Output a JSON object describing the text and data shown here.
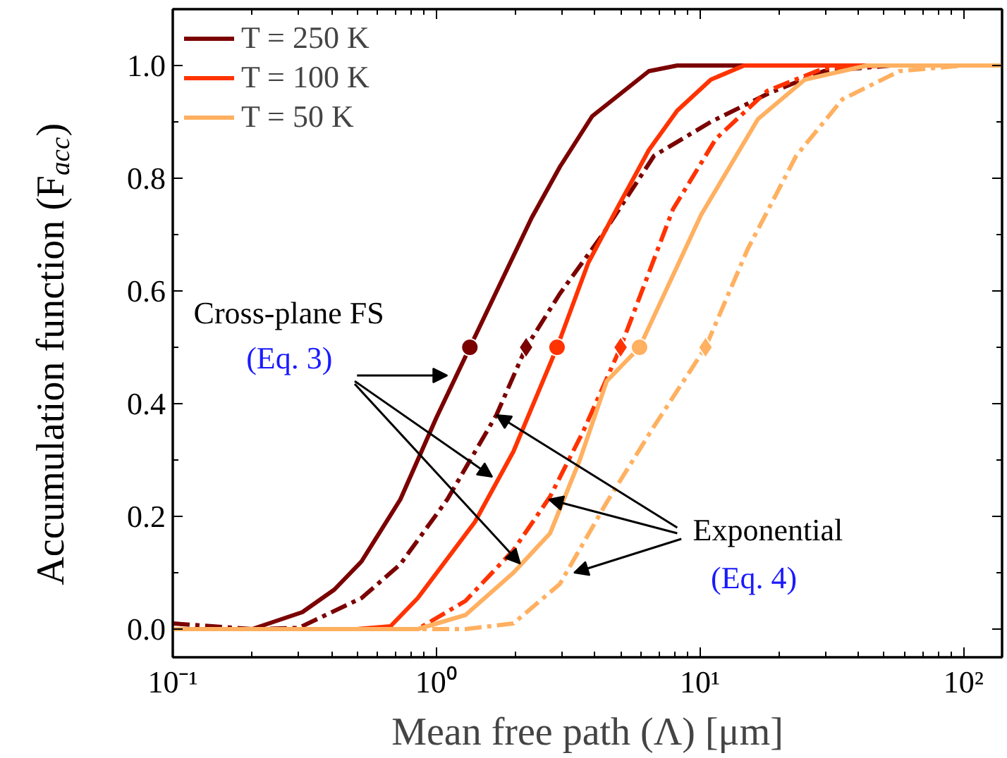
{
  "chart_data": {
    "type": "line",
    "xlabel": "Mean free path (Λ) [μm]",
    "ylabel": "Accumulation function (F$_{acc}$)",
    "log": "x",
    "xlim": [
      0.1,
      140
    ],
    "ylim": [
      -0.05,
      1.1
    ],
    "xticks": [
      {
        "value": 0.1,
        "label": "10⁻¹"
      },
      {
        "value": 1,
        "label": "10⁰"
      },
      {
        "value": 10,
        "label": "10¹"
      },
      {
        "value": 100,
        "label": "10²"
      }
    ],
    "yticks": [
      {
        "value": 0,
        "label": "0.0"
      },
      {
        "value": 0.2,
        "label": "0.2"
      },
      {
        "value": 0.4,
        "label": "0.4"
      },
      {
        "value": 0.6,
        "label": "0.6"
      },
      {
        "value": 0.8,
        "label": "0.8"
      },
      {
        "value": 1,
        "label": "1.0"
      }
    ],
    "grid": false,
    "legend": "top left",
    "marker": "none",
    "annotations": [
      "Cross-plane FS",
      {
        "text": "(Eq. 3)",
        "x": 1.1,
        "y": 0.45
      },
      {
        "text": "Exponential",
        "x": 1.69,
        "y": 0.38
      },
      {
        "text": "(Eq. 4)",
        "x": 3.33,
        "y": 0.1
      }
    ],
    "series": [
      {
        "name": "T = 250 K",
        "color": "#7b0000",
        "line_style": "solid",
        "x": [
          0.1,
          0.2,
          0.31,
          0.41,
          0.52,
          0.73,
          1.0,
          1.34,
          2.3,
          2.94,
          3.9,
          6.4,
          8.2,
          140
        ],
        "values": [
          0.0,
          0.0,
          0.03,
          0.07,
          0.12,
          0.23,
          0.375,
          0.5,
          0.73,
          0.82,
          0.91,
          0.99,
          1.0,
          1.0
        ]
      },
      {
        "color": "#7b0000",
        "line_style": "dashdot",
        "x": [
          0.1,
          0.2,
          0.3,
          0.52,
          0.73,
          1.1,
          1.69,
          2.19,
          2.94,
          4.27,
          6.7,
          11.0,
          18.1,
          29.5,
          53,
          140
        ],
        "values": [
          0.01,
          0.0,
          0.002,
          0.055,
          0.115,
          0.23,
          0.38,
          0.5,
          0.595,
          0.7,
          0.84,
          0.9,
          0.95,
          0.99,
          1.0,
          1.0
        ]
      },
      {
        "name": "T = 100 K",
        "color": "#ff3300",
        "line_style": "solid",
        "x": [
          0.1,
          0.5,
          0.67,
          0.85,
          1.4,
          1.96,
          2.87,
          3.77,
          4.83,
          6.4,
          8.2,
          11.0,
          14.7,
          140
        ],
        "values": [
          0.0,
          0.0,
          0.005,
          0.055,
          0.19,
          0.315,
          0.5,
          0.65,
          0.745,
          0.85,
          0.92,
          0.975,
          1.0,
          1.0
        ]
      },
      {
        "color": "#ff3300",
        "line_style": "dashdot",
        "x": [
          0.1,
          0.85,
          1.29,
          1.96,
          2.7,
          3.6,
          5.0,
          7.9,
          11.5,
          18,
          29.5,
          50,
          140
        ],
        "values": [
          0.0,
          0.0,
          0.05,
          0.14,
          0.235,
          0.35,
          0.5,
          0.745,
          0.87,
          0.955,
          0.995,
          1.0,
          1.0
        ]
      },
      {
        "name": "T = 50 K",
        "color": "#ffb060",
        "line_style": "solid",
        "x": [
          0.1,
          0.85,
          1.29,
          1.96,
          2.7,
          3.5,
          4.43,
          5.9,
          10.1,
          16.6,
          25,
          43,
          140
        ],
        "values": [
          0.0,
          0.0,
          0.025,
          0.1,
          0.17,
          0.3,
          0.44,
          0.5,
          0.735,
          0.905,
          0.975,
          1.0,
          1.0
        ]
      },
      {
        "color": "#ffb060",
        "line_style": "dashdot",
        "x": [
          0.1,
          1.29,
          1.96,
          2.94,
          4.43,
          6.7,
          10.5,
          15.2,
          23.2,
          34.7,
          57,
          100,
          140
        ],
        "values": [
          0.0,
          0.0,
          0.01,
          0.08,
          0.225,
          0.36,
          0.5,
          0.675,
          0.84,
          0.94,
          0.99,
          1.0,
          1.0
        ]
      },
      {
        "type": "scatter",
        "marker": "circle",
        "colors": [
          "#7b0000",
          "#ff3300",
          "#ffb060"
        ],
        "x": [
          1.34,
          2.87,
          5.9
        ],
        "values": [
          0.5,
          0.5,
          0.5
        ]
      },
      {
        "type": "scatter",
        "marker": "diamond",
        "colors": [
          "#7b0000",
          "#ff3300",
          "#ffb060"
        ],
        "x": [
          2.19,
          5.0,
          10.5
        ],
        "values": [
          0.5,
          0.5,
          0.5
        ]
      }
    ]
  }
}
